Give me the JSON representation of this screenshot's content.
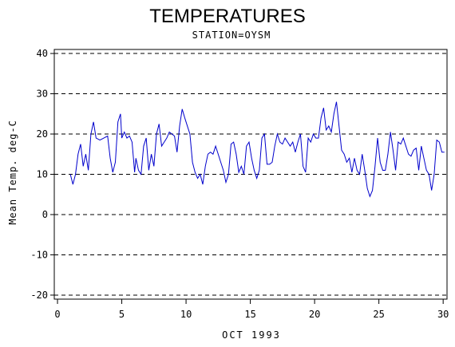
{
  "chart_data": {
    "type": "line",
    "title": "TEMPERATURES",
    "subtitle": "STATION=OYSM",
    "xlabel": "OCT 1993",
    "ylabel": "Mean Temp. deg-C",
    "xlim": [
      -0.25,
      30.3
    ],
    "xticks": [
      0,
      5,
      10,
      15,
      20,
      25,
      30
    ],
    "ylim": [
      -21,
      41
    ],
    "yticks": [
      -20,
      -10,
      0,
      10,
      20,
      30,
      40
    ],
    "grid": true,
    "x": [
      1.0,
      1.2,
      1.4,
      1.6,
      1.8,
      2.0,
      2.2,
      2.4,
      2.6,
      2.8,
      3.0,
      3.3,
      3.6,
      3.9,
      4.1,
      4.3,
      4.5,
      4.7,
      4.9,
      5.0,
      5.2,
      5.4,
      5.6,
      5.8,
      6.0,
      6.1,
      6.3,
      6.5,
      6.7,
      6.9,
      7.1,
      7.3,
      7.5,
      7.7,
      7.9,
      8.1,
      8.3,
      8.5,
      8.7,
      8.9,
      9.1,
      9.3,
      9.5,
      9.7,
      9.9,
      10.1,
      10.3,
      10.5,
      10.7,
      10.9,
      11.1,
      11.3,
      11.5,
      11.7,
      11.9,
      12.1,
      12.3,
      12.5,
      12.7,
      12.9,
      13.1,
      13.3,
      13.5,
      13.7,
      13.9,
      14.1,
      14.3,
      14.5,
      14.7,
      14.9,
      15.1,
      15.3,
      15.5,
      15.7,
      15.9,
      16.1,
      16.3,
      16.5,
      16.7,
      16.9,
      17.1,
      17.3,
      17.5,
      17.7,
      17.9,
      18.1,
      18.3,
      18.5,
      18.7,
      18.9,
      19.1,
      19.3,
      19.5,
      19.7,
      19.9,
      20.1,
      20.3,
      20.5,
      20.7,
      20.9,
      21.1,
      21.3,
      21.5,
      21.7,
      21.9,
      22.1,
      22.3,
      22.5,
      22.7,
      22.9,
      23.1,
      23.3,
      23.5,
      23.7,
      23.9,
      24.1,
      24.3,
      24.5,
      24.7,
      24.9,
      25.1,
      25.3,
      25.5,
      25.7,
      25.9,
      26.1,
      26.3,
      26.5,
      26.7,
      26.9,
      27.1,
      27.3,
      27.5,
      27.7,
      27.9,
      28.1,
      28.3,
      28.5,
      28.7,
      28.9,
      29.1,
      29.3,
      29.5,
      29.7,
      29.9,
      30.1
    ],
    "series": [
      {
        "name": "Mean Temp",
        "color": "#0000cc",
        "values": [
          10,
          7.5,
          10,
          15,
          17.5,
          12,
          15,
          11,
          20,
          23,
          19,
          18.5,
          19,
          19.5,
          14,
          10.5,
          13,
          23,
          25,
          19,
          20.5,
          19,
          19.5,
          18,
          10.5,
          14,
          11,
          10,
          17,
          19,
          11,
          15,
          12,
          20,
          22.5,
          17,
          18,
          19,
          20.5,
          20,
          19.5,
          15.5,
          22,
          26.2,
          24,
          22,
          20,
          13,
          10.5,
          9,
          10,
          7.5,
          12,
          15,
          15.5,
          15,
          17,
          15,
          13,
          11,
          8,
          10,
          17.5,
          18,
          15,
          10.5,
          12,
          10,
          17,
          18,
          14,
          11,
          9,
          11,
          19,
          20,
          12.5,
          12.5,
          13,
          17,
          20,
          18,
          17.5,
          19,
          18,
          17,
          18,
          15.5,
          18,
          20,
          12,
          10.5,
          19,
          18,
          20,
          19,
          19,
          24,
          26.5,
          21,
          22,
          20.5,
          25,
          28,
          22,
          16,
          15,
          13,
          14,
          10.5,
          14,
          11,
          10,
          15,
          11,
          6.5,
          4.5,
          6,
          12,
          19,
          13,
          11,
          11,
          15,
          20.5,
          16,
          11,
          18,
          17.5,
          19,
          17,
          15,
          14.5,
          16,
          16.5,
          11,
          17,
          14,
          11,
          10,
          6,
          10,
          18.5,
          18,
          15.5,
          15.5
        ]
      }
    ]
  }
}
